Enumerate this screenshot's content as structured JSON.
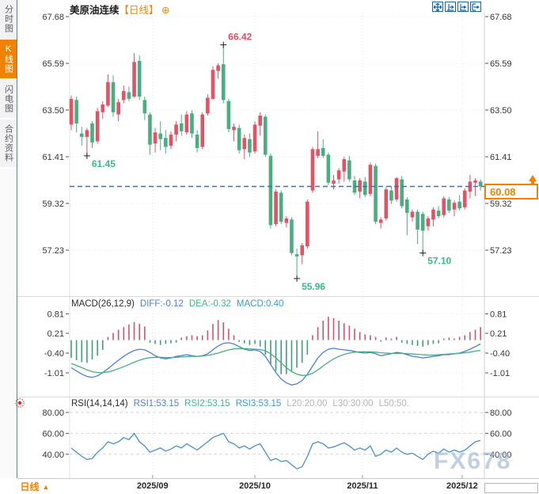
{
  "app": {
    "watermark": "FX678"
  },
  "sidebar": {
    "items": [
      {
        "label": "分时图",
        "active": false
      },
      {
        "label": "K线图",
        "active": true
      },
      {
        "label": "闪电图",
        "active": false
      },
      {
        "label": "合约资料",
        "active": false
      }
    ]
  },
  "header": {
    "title": "美原油连续",
    "period_tag": "【日线】",
    "add_symbol": "⊕"
  },
  "toolbar": {
    "icons": [
      "pan",
      "zoom-in-horizontal",
      "zoom-out-horizontal",
      "shift-right"
    ]
  },
  "main_panel": {
    "axis_labels": [
      "67.68",
      "65.59",
      "63.50",
      "61.41",
      "59.32",
      "57.23"
    ],
    "last_price_label": "60.08"
  },
  "macd_panel": {
    "title": "MACD(26,12,9)",
    "diff": "DIFF:-0.12",
    "dea": "DEA:-0.32",
    "macd": "MACD:0.40",
    "axis_labels": [
      "0.81",
      "0.21",
      "-0.40",
      "-1.01"
    ]
  },
  "rsi_panel": {
    "title": "RSI(14,14,14)",
    "rsi1": "RSI1:53.15",
    "rsi2": "RSI2:53.15",
    "rsi3": "RSI3:53.15",
    "l20": "L20:20.00",
    "l30": "L30:30.00",
    "l50": "L50:50.",
    "axis_labels": [
      "80.00",
      "60.00",
      "40.00"
    ]
  },
  "bottom_bar": {
    "period": "日线",
    "dropdown_arrow": "▲"
  },
  "colors": {
    "accent_orange": "#f08200",
    "up_red": "#e25465",
    "down_green": "#4bae81",
    "hist_up": "#cc5570",
    "hist_down": "#3fa077",
    "diff_blue": "#4a7fd1",
    "dea_green": "#46ad85",
    "rsi_blue": "#4a90c9",
    "dashed_price_blue": "#1f78d6",
    "icon_blue": "#1565b0",
    "annotation_red": "#e8495f",
    "annotation_green": "#3cb88a"
  },
  "chart_data": {
    "type": "candlestick",
    "symbol": "美原油连续",
    "period": "日线",
    "price_axis": [
      67.68,
      65.59,
      63.5,
      61.41,
      59.32,
      57.23
    ],
    "last_price": 60.08,
    "months": [
      {
        "label": "2025/09",
        "candle_index": 15.5
      },
      {
        "label": "2025/10",
        "candle_index": 35.0
      },
      {
        "label": "2025/11",
        "candle_index": 55.5
      },
      {
        "label": "2025/12",
        "candle_index": 74.5
      }
    ],
    "annotations": [
      {
        "text": "66.42",
        "candle": 29,
        "price": 66.42,
        "kind": "high"
      },
      {
        "text": "61.45",
        "candle": 3,
        "price": 61.45,
        "kind": "low"
      },
      {
        "text": "55.96",
        "candle": 43,
        "price": 55.96,
        "kind": "low"
      },
      {
        "text": "57.10",
        "candle": 67,
        "price": 57.1,
        "kind": "low"
      }
    ],
    "candles": [
      [
        62.85,
        64.15,
        62.6,
        64.0
      ],
      [
        63.95,
        64.1,
        62.5,
        62.9
      ],
      [
        62.45,
        62.75,
        61.9,
        62.3
      ],
      [
        62.3,
        62.7,
        61.45,
        62.6
      ],
      [
        62.9,
        63.0,
        61.8,
        62.05
      ],
      [
        62.1,
        63.6,
        62.0,
        63.45
      ],
      [
        63.4,
        63.9,
        63.1,
        63.75
      ],
      [
        63.7,
        65.1,
        63.65,
        64.75
      ],
      [
        64.75,
        65.05,
        63.2,
        63.4
      ],
      [
        63.3,
        64.0,
        63.0,
        63.85
      ],
      [
        63.95,
        64.6,
        63.8,
        64.35
      ],
      [
        64.3,
        64.55,
        63.9,
        64.0
      ],
      [
        64.1,
        66.05,
        64.05,
        65.65
      ],
      [
        65.7,
        65.95,
        63.95,
        64.1
      ],
      [
        63.95,
        64.1,
        63.05,
        63.35
      ],
      [
        63.3,
        63.4,
        61.5,
        61.95
      ],
      [
        62.0,
        62.7,
        61.6,
        62.5
      ],
      [
        62.45,
        63.0,
        61.7,
        62.2
      ],
      [
        62.25,
        62.6,
        61.55,
        61.85
      ],
      [
        61.9,
        62.55,
        61.75,
        62.4
      ],
      [
        62.4,
        63.0,
        62.1,
        62.85
      ],
      [
        62.9,
        63.3,
        62.35,
        62.55
      ],
      [
        62.5,
        63.45,
        62.4,
        63.3
      ],
      [
        63.35,
        63.5,
        62.25,
        62.45
      ],
      [
        62.4,
        62.6,
        61.6,
        61.8
      ],
      [
        61.85,
        63.4,
        61.75,
        63.3
      ],
      [
        63.35,
        64.2,
        63.25,
        64.05
      ],
      [
        64.0,
        65.45,
        63.95,
        65.3
      ],
      [
        65.25,
        65.6,
        64.9,
        65.5
      ],
      [
        65.55,
        66.42,
        63.8,
        63.95
      ],
      [
        63.9,
        64.0,
        62.5,
        62.65
      ],
      [
        62.6,
        62.9,
        62.1,
        62.75
      ],
      [
        62.7,
        62.85,
        61.55,
        61.7
      ],
      [
        61.75,
        62.4,
        61.3,
        62.25
      ],
      [
        62.2,
        62.45,
        61.4,
        61.6
      ],
      [
        61.65,
        63.0,
        61.55,
        62.85
      ],
      [
        62.8,
        63.4,
        62.35,
        63.25
      ],
      [
        63.2,
        63.3,
        61.4,
        61.5
      ],
      [
        61.45,
        61.55,
        58.2,
        58.35
      ],
      [
        58.4,
        59.95,
        58.3,
        59.85
      ],
      [
        59.8,
        59.9,
        58.4,
        58.5
      ],
      [
        58.45,
        58.75,
        58.25,
        58.65
      ],
      [
        58.6,
        58.7,
        57.0,
        57.1
      ],
      [
        57.05,
        57.3,
        55.96,
        56.95
      ],
      [
        57.0,
        57.55,
        56.6,
        57.45
      ],
      [
        57.4,
        59.5,
        57.3,
        59.4
      ],
      [
        59.9,
        61.85,
        59.8,
        61.75
      ],
      [
        61.45,
        62.55,
        61.35,
        61.75
      ],
      [
        61.8,
        62.2,
        61.35,
        61.45
      ],
      [
        61.5,
        61.6,
        60.15,
        60.25
      ],
      [
        60.2,
        60.6,
        59.95,
        60.35
      ],
      [
        60.4,
        60.9,
        60.2,
        60.8
      ],
      [
        60.75,
        61.4,
        60.3,
        61.3
      ],
      [
        61.25,
        61.45,
        60.3,
        60.4
      ],
      [
        60.35,
        60.55,
        59.7,
        59.8
      ],
      [
        59.85,
        60.45,
        59.55,
        60.35
      ],
      [
        60.3,
        60.5,
        59.6,
        59.7
      ],
      [
        59.75,
        61.15,
        59.65,
        61.05
      ],
      [
        61.0,
        61.1,
        58.4,
        58.5
      ],
      [
        58.45,
        58.7,
        58.2,
        58.6
      ],
      [
        58.65,
        60.05,
        58.55,
        59.95
      ],
      [
        59.9,
        60.1,
        59.3,
        59.45
      ],
      [
        59.5,
        60.5,
        59.4,
        60.45
      ],
      [
        60.4,
        60.55,
        59.1,
        59.2
      ],
      [
        59.5,
        59.6,
        57.9,
        58.9
      ],
      [
        58.7,
        59.05,
        58.5,
        58.95
      ],
      [
        58.95,
        59.05,
        57.5,
        58.15
      ],
      [
        58.85,
        58.95,
        57.1,
        58.1
      ],
      [
        58.3,
        58.75,
        58.1,
        58.65
      ],
      [
        58.6,
        59.15,
        58.3,
        59.05
      ],
      [
        59.0,
        59.2,
        58.65,
        58.75
      ],
      [
        58.8,
        59.65,
        58.7,
        59.55
      ],
      [
        59.5,
        59.6,
        58.9,
        59.0
      ],
      [
        59.05,
        59.45,
        58.75,
        59.35
      ],
      [
        59.4,
        59.7,
        59.0,
        59.1
      ],
      [
        59.15,
        60.0,
        59.05,
        59.9
      ],
      [
        59.85,
        60.6,
        59.55,
        60.3
      ],
      [
        60.25,
        60.45,
        59.65,
        60.35
      ],
      [
        60.3,
        60.4,
        59.9,
        60.08
      ]
    ],
    "macd": {
      "params": [
        26,
        12,
        9
      ],
      "axis": [
        0.81,
        0.21,
        -0.4,
        -1.01
      ],
      "last": {
        "diff": -0.12,
        "dea": -0.32,
        "macd": 0.4
      },
      "hist": [
        -0.55,
        -0.62,
        -0.68,
        -0.7,
        -0.6,
        -0.48,
        -0.3,
        0.1,
        0.22,
        0.32,
        0.4,
        0.48,
        0.55,
        0.5,
        0.42,
        -0.08,
        -0.12,
        -0.15,
        -0.12,
        -0.1,
        -0.08,
        0.08,
        0.12,
        0.15,
        0.12,
        0.15,
        0.3,
        0.5,
        0.62,
        0.55,
        0.35,
        0.15,
        -0.05,
        -0.1,
        -0.15,
        -0.12,
        -0.2,
        -0.45,
        -0.75,
        -0.95,
        -1.05,
        -1.05,
        -0.95,
        -0.85,
        -0.7,
        -0.45,
        0.15,
        0.4,
        0.6,
        0.72,
        0.68,
        0.6,
        0.52,
        0.45,
        0.35,
        0.25,
        0.18,
        0.15,
        0.1,
        -0.05,
        0.08,
        0.05,
        0.1,
        -0.08,
        -0.12,
        -0.15,
        -0.18,
        -0.2,
        -0.15,
        -0.12,
        -0.1,
        0.05,
        0.08,
        0.05,
        0.1,
        0.15,
        0.25,
        0.32,
        0.4
      ],
      "diff": [
        -0.85,
        -0.95,
        -1.05,
        -1.12,
        -1.15,
        -1.1,
        -1.0,
        -0.88,
        -0.75,
        -0.62,
        -0.5,
        -0.4,
        -0.32,
        -0.28,
        -0.3,
        -0.38,
        -0.48,
        -0.55,
        -0.58,
        -0.55,
        -0.5,
        -0.48,
        -0.45,
        -0.48,
        -0.5,
        -0.48,
        -0.42,
        -0.3,
        -0.18,
        -0.1,
        -0.08,
        -0.12,
        -0.2,
        -0.28,
        -0.32,
        -0.3,
        -0.35,
        -0.5,
        -0.75,
        -1.0,
        -1.2,
        -1.32,
        -1.38,
        -1.35,
        -1.25,
        -1.05,
        -0.8,
        -0.55,
        -0.38,
        -0.28,
        -0.25,
        -0.28,
        -0.3,
        -0.32,
        -0.35,
        -0.38,
        -0.4,
        -0.38,
        -0.42,
        -0.48,
        -0.45,
        -0.42,
        -0.38,
        -0.4,
        -0.45,
        -0.5,
        -0.52,
        -0.55,
        -0.53,
        -0.5,
        -0.48,
        -0.45,
        -0.45,
        -0.42,
        -0.4,
        -0.35,
        -0.28,
        -0.2,
        -0.12
      ],
      "dea": [
        -0.72,
        -0.78,
        -0.85,
        -0.92,
        -0.97,
        -1.0,
        -1.0,
        -0.98,
        -0.94,
        -0.88,
        -0.82,
        -0.75,
        -0.68,
        -0.62,
        -0.57,
        -0.54,
        -0.53,
        -0.53,
        -0.54,
        -0.54,
        -0.53,
        -0.52,
        -0.51,
        -0.5,
        -0.5,
        -0.49,
        -0.47,
        -0.44,
        -0.4,
        -0.35,
        -0.3,
        -0.27,
        -0.26,
        -0.26,
        -0.27,
        -0.28,
        -0.29,
        -0.33,
        -0.42,
        -0.55,
        -0.7,
        -0.85,
        -0.97,
        -1.05,
        -1.09,
        -1.08,
        -1.02,
        -0.92,
        -0.8,
        -0.68,
        -0.58,
        -0.5,
        -0.44,
        -0.4,
        -0.37,
        -0.36,
        -0.36,
        -0.36,
        -0.37,
        -0.39,
        -0.4,
        -0.41,
        -0.41,
        -0.41,
        -0.42,
        -0.43,
        -0.44,
        -0.45,
        -0.46,
        -0.46,
        -0.45,
        -0.44,
        -0.43,
        -0.42,
        -0.41,
        -0.39,
        -0.37,
        -0.34,
        -0.32
      ]
    },
    "rsi": {
      "params": [
        14,
        14,
        14
      ],
      "axis": [
        80,
        60,
        40
      ],
      "levels": {
        "l20": 20.0,
        "l30": 30.0,
        "l50": 50.0
      },
      "last": {
        "rsi1": 53.15,
        "rsi2": 53.15,
        "rsi3": 53.15
      },
      "rsi1": [
        46,
        42,
        38,
        35,
        36,
        42,
        46,
        52,
        50,
        52,
        56,
        54,
        60,
        52,
        48,
        42,
        44,
        46,
        43,
        45,
        48,
        46,
        50,
        47,
        44,
        48,
        52,
        56,
        58,
        60,
        52,
        50,
        46,
        48,
        45,
        48,
        50,
        42,
        34,
        36,
        33,
        34,
        30,
        26,
        28,
        38,
        50,
        52,
        50,
        46,
        47,
        49,
        51,
        48,
        44,
        46,
        44,
        48,
        38,
        40,
        44,
        42,
        46,
        42,
        40,
        41,
        38,
        35,
        40,
        43,
        41,
        45,
        42,
        44,
        42,
        44,
        48,
        52,
        53.15
      ]
    }
  }
}
